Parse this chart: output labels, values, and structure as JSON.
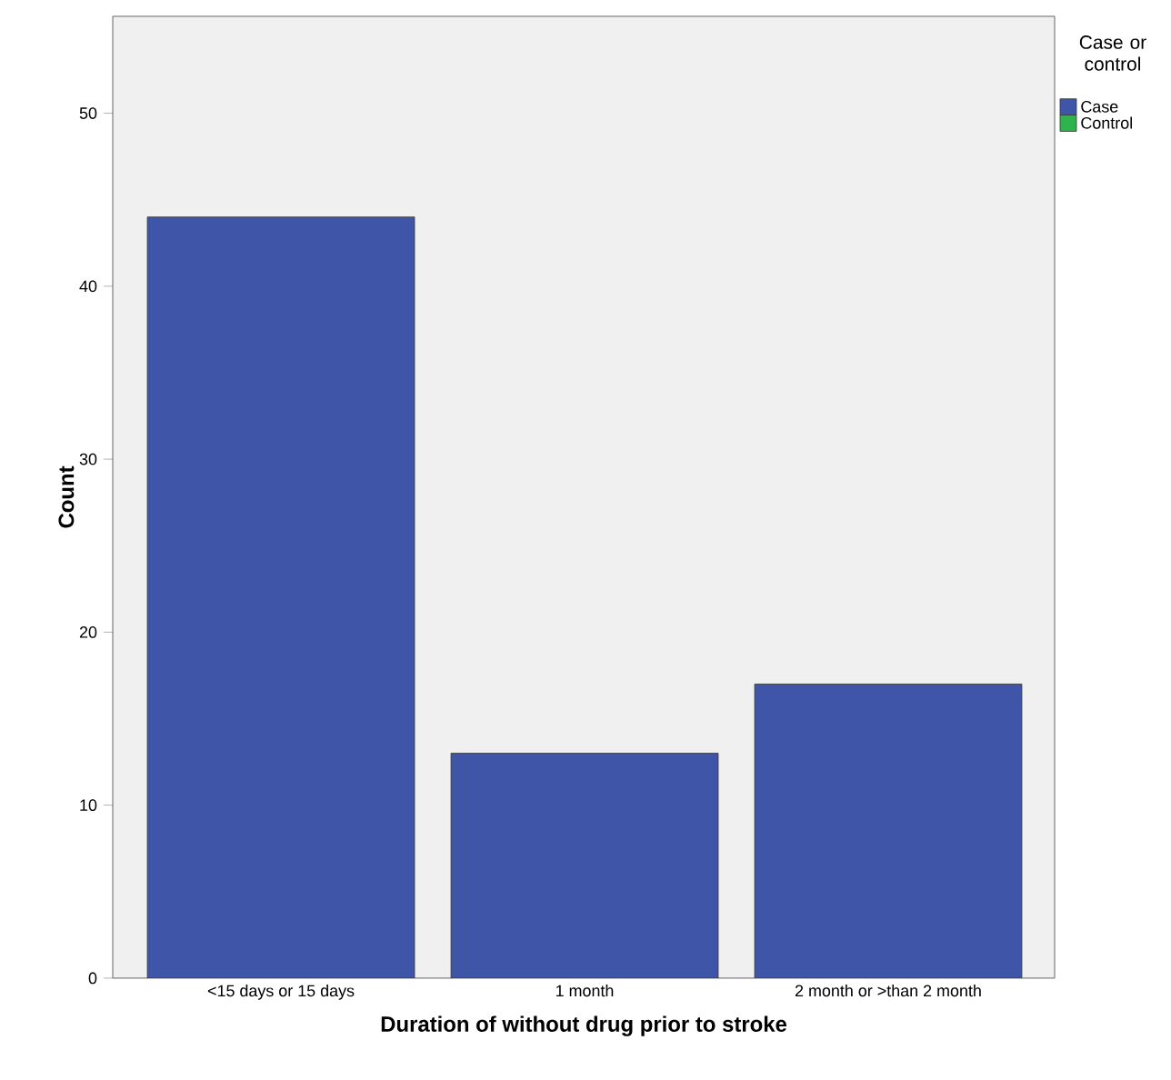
{
  "chart_data": {
    "type": "bar",
    "xlabel": "Duration of without drug prior to stroke",
    "ylabel": "Count",
    "legend_title": "Case or control",
    "legend": "top right",
    "categories": [
      "<15 days or 15 days",
      "1 month",
      "2 month or >than 2 month"
    ],
    "series": [
      {
        "name": "Case",
        "color": "#3f56a8",
        "values": [
          44,
          13,
          17
        ]
      },
      {
        "name": "Control",
        "color": "#2fb34c",
        "values": [
          null,
          null,
          null
        ]
      }
    ],
    "ylim": [
      0,
      55.6
    ],
    "yticks": [
      0,
      10,
      20,
      30,
      40,
      50
    ],
    "grid": false
  }
}
